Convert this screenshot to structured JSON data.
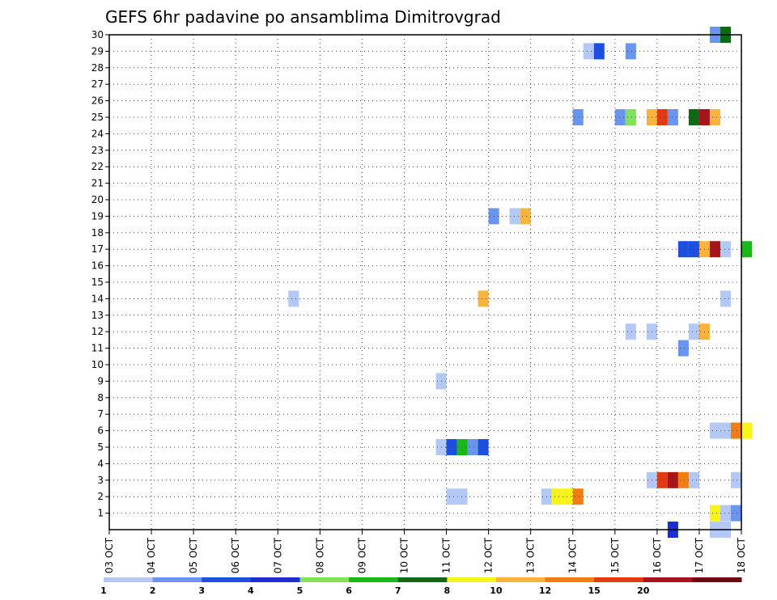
{
  "chart_data": {
    "type": "heatmap",
    "title": "GEFS 6hr padavine po ansamblima Dimitrovgrad",
    "x_tick_labels": [
      "03 OCT",
      "04 OCT",
      "05 OCT",
      "06 OCT",
      "07 OCT",
      "08 OCT",
      "09 OCT",
      "10 OCT",
      "11 OCT",
      "12 OCT",
      "13 OCT",
      "14 OCT",
      "15 OCT",
      "16 OCT",
      "17 OCT",
      "18 OCT"
    ],
    "x_unit": "6-hour steps from 03 OCT 00Z",
    "y_tick_labels": [
      "1",
      "2",
      "3",
      "4",
      "5",
      "6",
      "7",
      "8",
      "9",
      "10",
      "11",
      "12",
      "13",
      "14",
      "15",
      "16",
      "17",
      "18",
      "19",
      "20",
      "21",
      "22",
      "23",
      "24",
      "25",
      "26",
      "27",
      "28",
      "29",
      "30"
    ],
    "y_range": [
      0,
      30
    ],
    "grid": "dotted",
    "legend": {
      "position": "bottom",
      "colors": [
        "#b4c8f5",
        "#6a95ee",
        "#1c4ee0",
        "#1a2ed2",
        "#7ee25a",
        "#18b81a",
        "#0e6a12",
        "#f8f418",
        "#f8b43c",
        "#f07e14",
        "#e13a14",
        "#a8141a",
        "#6a0a10"
      ],
      "labels": [
        "1",
        "2",
        "3",
        "4",
        "5",
        "6",
        "7",
        "8",
        "10",
        "12",
        "15",
        "20"
      ]
    },
    "cells": [
      {
        "member": 30,
        "x": [
          57
        ],
        "colors": [
          "#6a95ee"
        ]
      },
      {
        "member": 30,
        "x": [
          58
        ],
        "colors": [
          "#0e6a12"
        ]
      },
      {
        "member": 29,
        "x": [
          45
        ],
        "colors": [
          "#b4c8f5"
        ]
      },
      {
        "member": 29,
        "x": [
          46
        ],
        "colors": [
          "#1c4ee0"
        ]
      },
      {
        "member": 29,
        "x": [
          49
        ],
        "colors": [
          "#6a95ee"
        ]
      },
      {
        "member": 25,
        "x": [
          44
        ],
        "colors": [
          "#6a95ee"
        ]
      },
      {
        "member": 25,
        "x": [
          48
        ],
        "colors": [
          "#6a95ee"
        ]
      },
      {
        "member": 25,
        "x": [
          49
        ],
        "colors": [
          "#7ee25a"
        ]
      },
      {
        "member": 25,
        "x": [
          51
        ],
        "colors": [
          "#f8b43c"
        ]
      },
      {
        "member": 25,
        "x": [
          52
        ],
        "colors": [
          "#e13a14"
        ]
      },
      {
        "member": 25,
        "x": [
          53
        ],
        "colors": [
          "#6a95ee"
        ]
      },
      {
        "member": 25,
        "x": [
          55
        ],
        "colors": [
          "#0e6a12"
        ]
      },
      {
        "member": 25,
        "x": [
          56
        ],
        "colors": [
          "#a8141a"
        ]
      },
      {
        "member": 25,
        "x": [
          57
        ],
        "colors": [
          "#f8b43c"
        ]
      },
      {
        "member": 19,
        "x": [
          36
        ],
        "colors": [
          "#6a95ee"
        ]
      },
      {
        "member": 19,
        "x": [
          38
        ],
        "colors": [
          "#b4c8f5"
        ]
      },
      {
        "member": 19,
        "x": [
          39
        ],
        "colors": [
          "#f8b43c"
        ]
      },
      {
        "member": 17,
        "x": [
          54
        ],
        "colors": [
          "#1c4ee0"
        ]
      },
      {
        "member": 17,
        "x": [
          55
        ],
        "colors": [
          "#1c4ee0"
        ]
      },
      {
        "member": 17,
        "x": [
          56
        ],
        "colors": [
          "#f8b43c"
        ]
      },
      {
        "member": 17,
        "x": [
          57
        ],
        "colors": [
          "#a8141a"
        ]
      },
      {
        "member": 17,
        "x": [
          58
        ],
        "colors": [
          "#b4c8f5"
        ]
      },
      {
        "member": 17,
        "x": [
          60
        ],
        "colors": [
          "#18b81a"
        ]
      },
      {
        "member": 14,
        "x": [
          17
        ],
        "colors": [
          "#b4c8f5"
        ]
      },
      {
        "member": 14,
        "x": [
          35
        ],
        "colors": [
          "#f8b43c"
        ]
      },
      {
        "member": 14,
        "x": [
          58
        ],
        "colors": [
          "#b4c8f5"
        ]
      },
      {
        "member": 12,
        "x": [
          49
        ],
        "colors": [
          "#b4c8f5"
        ]
      },
      {
        "member": 12,
        "x": [
          51
        ],
        "colors": [
          "#b4c8f5"
        ]
      },
      {
        "member": 12,
        "x": [
          55
        ],
        "colors": [
          "#b4c8f5"
        ]
      },
      {
        "member": 12,
        "x": [
          56
        ],
        "colors": [
          "#f8b43c"
        ]
      },
      {
        "member": 11,
        "x": [
          54
        ],
        "colors": [
          "#6a95ee"
        ]
      },
      {
        "member": 9,
        "x": [
          31
        ],
        "colors": [
          "#b4c8f5"
        ]
      },
      {
        "member": 6,
        "x": [
          57
        ],
        "colors": [
          "#b4c8f5"
        ]
      },
      {
        "member": 6,
        "x": [
          58
        ],
        "colors": [
          "#b4c8f5"
        ]
      },
      {
        "member": 6,
        "x": [
          59
        ],
        "colors": [
          "#f07e14"
        ]
      },
      {
        "member": 6,
        "x": [
          60
        ],
        "colors": [
          "#f8f418"
        ]
      },
      {
        "member": 5,
        "x": [
          31
        ],
        "colors": [
          "#b4c8f5"
        ]
      },
      {
        "member": 5,
        "x": [
          32
        ],
        "colors": [
          "#1c4ee0"
        ]
      },
      {
        "member": 5,
        "x": [
          33
        ],
        "colors": [
          "#18b81a"
        ]
      },
      {
        "member": 5,
        "x": [
          34
        ],
        "colors": [
          "#6a95ee"
        ]
      },
      {
        "member": 5,
        "x": [
          35
        ],
        "colors": [
          "#1c4ee0"
        ]
      },
      {
        "member": 3,
        "x": [
          51
        ],
        "colors": [
          "#b4c8f5"
        ]
      },
      {
        "member": 3,
        "x": [
          52
        ],
        "colors": [
          "#e13a14"
        ]
      },
      {
        "member": 3,
        "x": [
          53
        ],
        "colors": [
          "#a8141a"
        ]
      },
      {
        "member": 3,
        "x": [
          54
        ],
        "colors": [
          "#f07e14"
        ]
      },
      {
        "member": 3,
        "x": [
          55
        ],
        "colors": [
          "#b4c8f5"
        ]
      },
      {
        "member": 3,
        "x": [
          59
        ],
        "colors": [
          "#b4c8f5"
        ]
      },
      {
        "member": 2,
        "x": [
          32
        ],
        "colors": [
          "#b4c8f5"
        ]
      },
      {
        "member": 2,
        "x": [
          33
        ],
        "colors": [
          "#b4c8f5"
        ]
      },
      {
        "member": 2,
        "x": [
          41
        ],
        "colors": [
          "#b4c8f5"
        ]
      },
      {
        "member": 2,
        "x": [
          42
        ],
        "colors": [
          "#f8f418"
        ]
      },
      {
        "member": 2,
        "x": [
          43
        ],
        "colors": [
          "#f8f418"
        ]
      },
      {
        "member": 2,
        "x": [
          44
        ],
        "colors": [
          "#f07e14"
        ]
      },
      {
        "member": 1,
        "x": [
          57
        ],
        "colors": [
          "#f8f418"
        ]
      },
      {
        "member": 1,
        "x": [
          58
        ],
        "colors": [
          "#b4c8f5"
        ]
      },
      {
        "member": 1,
        "x": [
          59
        ],
        "colors": [
          "#6a95ee"
        ]
      },
      {
        "member": 0,
        "x": [
          53
        ],
        "colors": [
          "#1a2ed2"
        ]
      },
      {
        "member": 0,
        "x": [
          57
        ],
        "colors": [
          "#b4c8f5"
        ]
      },
      {
        "member": 0,
        "x": [
          58
        ],
        "colors": [
          "#b4c8f5"
        ]
      }
    ]
  }
}
